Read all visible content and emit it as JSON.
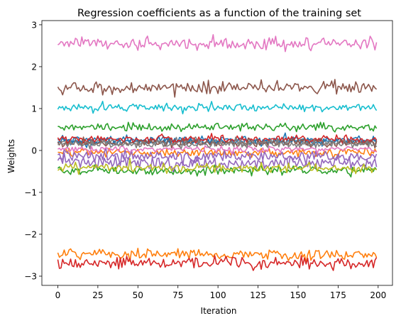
{
  "chart_data": {
    "type": "line",
    "title": "Regression coefficients as a function of the training set",
    "xlabel": "Iteration",
    "ylabel": "Weights",
    "xlim": [
      -9.95,
      208.95
    ],
    "ylim": [
      -3.22,
      3.1
    ],
    "xticks": [
      0,
      25,
      50,
      75,
      100,
      125,
      150,
      175,
      200
    ],
    "yticks": [
      -3,
      -2,
      -1,
      0,
      1,
      2,
      3
    ],
    "ytick_labels": [
      "−3",
      "−2",
      "−1",
      "0",
      "1",
      "2",
      "3"
    ],
    "x_start": 0,
    "x_end": 199,
    "grid": false,
    "legend": "none",
    "series": [
      {
        "color": "#1f77b4",
        "mean": 0.25,
        "noise": 0.05,
        "seed": 11
      },
      {
        "color": "#ff7f0e",
        "mean": -2.48,
        "noise": 0.06,
        "seed": 12
      },
      {
        "color": "#2ca02c",
        "mean": -0.48,
        "noise": 0.05,
        "seed": 13
      },
      {
        "color": "#d62728",
        "mean": -2.68,
        "noise": 0.07,
        "seed": 14
      },
      {
        "color": "#9467bd",
        "mean": -0.3,
        "noise": 0.08,
        "seed": 15
      },
      {
        "color": "#8c564b",
        "mean": 1.5,
        "noise": 0.08,
        "seed": 16
      },
      {
        "color": "#e377c2",
        "mean": 2.55,
        "noise": 0.08,
        "seed": 17
      },
      {
        "color": "#7f7f7f",
        "mean": 0.2,
        "noise": 0.04,
        "seed": 18
      },
      {
        "color": "#bcbd22",
        "mean": -0.42,
        "noise": 0.06,
        "seed": 19
      },
      {
        "color": "#17becf",
        "mean": 1.02,
        "noise": 0.05,
        "seed": 20
      },
      {
        "color": "#1f77b4",
        "mean": 0.22,
        "noise": 0.04,
        "seed": 21
      },
      {
        "color": "#ff7f0e",
        "mean": -0.05,
        "noise": 0.05,
        "seed": 22
      },
      {
        "color": "#2ca02c",
        "mean": 0.55,
        "noise": 0.05,
        "seed": 23
      },
      {
        "color": "#d62728",
        "mean": 0.27,
        "noise": 0.05,
        "seed": 24
      },
      {
        "color": "#9467bd",
        "mean": -0.15,
        "noise": 0.07,
        "seed": 25
      },
      {
        "color": "#8c564b",
        "mean": 0.18,
        "noise": 0.05,
        "seed": 26
      },
      {
        "color": "#e377c2",
        "mean": 0.03,
        "noise": 0.04,
        "seed": 27
      },
      {
        "color": "#7f7f7f",
        "mean": 0.15,
        "noise": 0.05,
        "seed": 28
      }
    ]
  }
}
